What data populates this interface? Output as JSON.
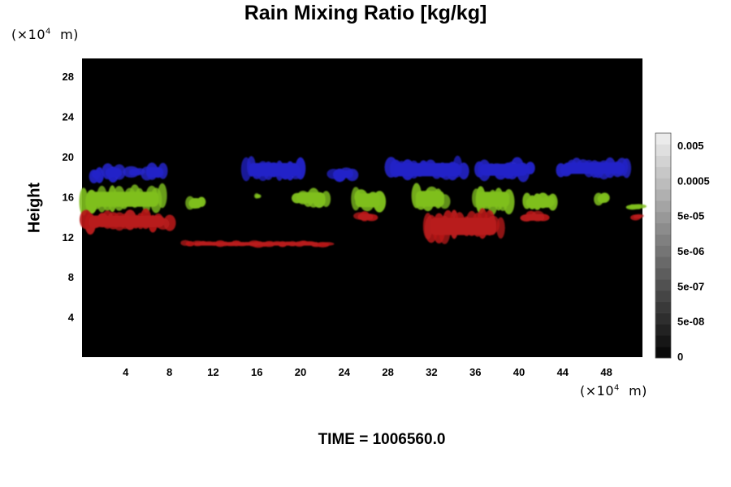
{
  "chart_data": {
    "type": "heatmap",
    "title": "Rain Mixing Ratio [kg/kg]",
    "xlabel": "",
    "ylabel": "Height",
    "x_unit": "(×10⁴ m)",
    "y_unit": "(×10⁴ m)",
    "xlim": [
      0,
      51.3
    ],
    "ylim": [
      0,
      29.8
    ],
    "x_ticks": [
      4,
      8,
      12,
      16,
      20,
      24,
      28,
      32,
      36,
      40,
      44,
      48
    ],
    "y_ticks": [
      4,
      8,
      12,
      16,
      20,
      24,
      28
    ],
    "colorbar": {
      "labels": [
        "0.005",
        "0.0005",
        "5e-05",
        "5e-06",
        "5e-07",
        "5e-08",
        "0"
      ],
      "levels": 20
    },
    "background_color": "#000000",
    "layers": [
      {
        "color": "#2424c8",
        "height_range": [
          17.5,
          19.5
        ],
        "patches": [
          {
            "x": [
              0.8,
              1.8
            ],
            "y": [
              17.5,
              19.0
            ]
          },
          {
            "x": [
              2.0,
              3.8
            ],
            "y": [
              17.6,
              19.2
            ]
          },
          {
            "x": [
              4.2,
              5.5
            ],
            "y": [
              17.9,
              19.0
            ]
          },
          {
            "x": [
              5.7,
              7.6
            ],
            "y": [
              17.6,
              19.3
            ]
          },
          {
            "x": [
              14.8,
              20.3
            ],
            "y": [
              17.6,
              19.8
            ]
          },
          {
            "x": [
              22.8,
              25.0
            ],
            "y": [
              17.6,
              18.9
            ]
          },
          {
            "x": [
              28.0,
              35.2
            ],
            "y": [
              17.6,
              19.8
            ]
          },
          {
            "x": [
              36.1,
              41.2
            ],
            "y": [
              17.7,
              19.7
            ]
          },
          {
            "x": [
              43.5,
              50.2
            ],
            "y": [
              17.9,
              19.8
            ]
          }
        ]
      },
      {
        "color": "#7fbf1f",
        "height_range": [
          14.5,
          17.0
        ],
        "patches": [
          {
            "x": [
              0,
              7.6
            ],
            "y": [
              14.5,
              17.0
            ]
          },
          {
            "x": [
              9.7,
              11.1
            ],
            "y": [
              14.5,
              16.2
            ]
          },
          {
            "x": [
              15.8,
              16.3
            ],
            "y": [
              15.8,
              16.3
            ]
          },
          {
            "x": [
              19.4,
              22.5
            ],
            "y": [
              15.0,
              16.8
            ]
          },
          {
            "x": [
              24.8,
              27.5
            ],
            "y": [
              14.5,
              16.8
            ]
          },
          {
            "x": [
              30.3,
              33.4
            ],
            "y": [
              14.5,
              17.1
            ]
          },
          {
            "x": [
              35.8,
              39.4
            ],
            "y": [
              14.5,
              17.0
            ]
          },
          {
            "x": [
              40.4,
              43.4
            ],
            "y": [
              14.6,
              16.2
            ]
          },
          {
            "x": [
              47.1,
              48.1
            ],
            "y": [
              15.1,
              16.5
            ]
          },
          {
            "x": [
              50.0,
              51.3
            ],
            "y": [
              14.6,
              15.4
            ]
          }
        ]
      },
      {
        "color": "#b81a1a",
        "height_range": [
          11.0,
          14.5
        ],
        "patches": [
          {
            "x": [
              0,
              8.2
            ],
            "y": [
              12.6,
              14.5
            ]
          },
          {
            "x": [
              25.1,
              26.8
            ],
            "y": [
              13.5,
              14.5
            ]
          },
          {
            "x": [
              31.3,
              38.5
            ],
            "y": [
              11.6,
              14.5
            ]
          },
          {
            "x": [
              40.4,
              42.5
            ],
            "y": [
              13.4,
              14.5
            ]
          },
          {
            "x": [
              50.4,
              51.3
            ],
            "y": [
              13.7,
              14.3
            ]
          },
          {
            "x": [
              9.2,
              22.7
            ],
            "y": [
              11.0,
              11.6
            ]
          }
        ]
      }
    ]
  },
  "footer": {
    "time": "TIME = 1006560.0"
  }
}
